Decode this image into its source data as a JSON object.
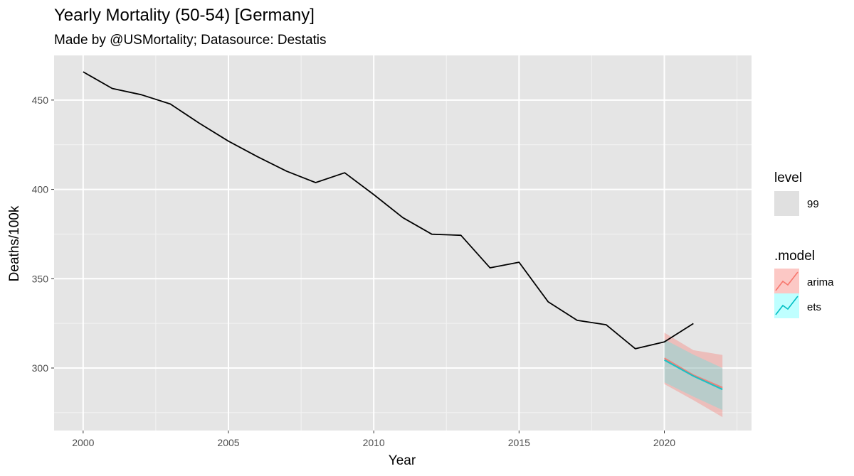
{
  "chart_data": {
    "type": "line",
    "title": "Yearly Mortality (50-54) [Germany]",
    "subtitle": "Made by @USMortality; Datasource: Destatis",
    "xlabel": "Year",
    "ylabel": "Deaths/100k",
    "xlim": [
      1999,
      2023
    ],
    "ylim": [
      265,
      475
    ],
    "x_ticks": [
      2000,
      2005,
      2010,
      2015,
      2020
    ],
    "y_ticks": [
      300,
      350,
      400,
      450
    ],
    "grid": true,
    "panel_background": "#e5e5e5",
    "series": [
      {
        "color": "#000000",
        "x": [
          2000,
          2001,
          2002,
          2003,
          2004,
          2005,
          2006,
          2007,
          2008,
          2009,
          2010,
          2011,
          2012,
          2013,
          2014,
          2015,
          2016,
          2017,
          2018,
          2019,
          2020,
          2021
        ],
        "y": [
          465.8,
          456.5,
          453.0,
          447.8,
          437.0,
          427.0,
          418.3,
          410.2,
          403.8,
          409.3,
          397.1,
          384.2,
          374.9,
          374.3,
          356.1,
          359.2,
          337.1,
          326.7,
          324.2,
          310.8,
          314.6,
          324.9
        ]
      }
    ],
    "forecasts": [
      {
        "name": "arima",
        "color": "#f8766d",
        "fill": "#f8766d",
        "x": [
          2020,
          2021,
          2022
        ],
        "y": [
          305.5,
          296.0,
          289.0
        ],
        "lower": [
          291.0,
          282.0,
          272.5
        ],
        "upper": [
          319.8,
          310.0,
          307.3
        ]
      },
      {
        "name": "ets",
        "color": "#00bfc4",
        "fill": "#00ffff",
        "x": [
          2020,
          2021,
          2022
        ],
        "y": [
          304.5,
          295.5,
          288.0
        ],
        "lower": [
          292.0,
          284.0,
          276.5
        ],
        "upper": [
          316.0,
          307.5,
          300.0
        ]
      }
    ],
    "legend": {
      "position": "right",
      "level": {
        "title": "level",
        "label": "99",
        "swatch_color": "#e0e0e0"
      },
      "model": {
        "title": ".model",
        "items": [
          "arima",
          "ets"
        ]
      }
    }
  }
}
